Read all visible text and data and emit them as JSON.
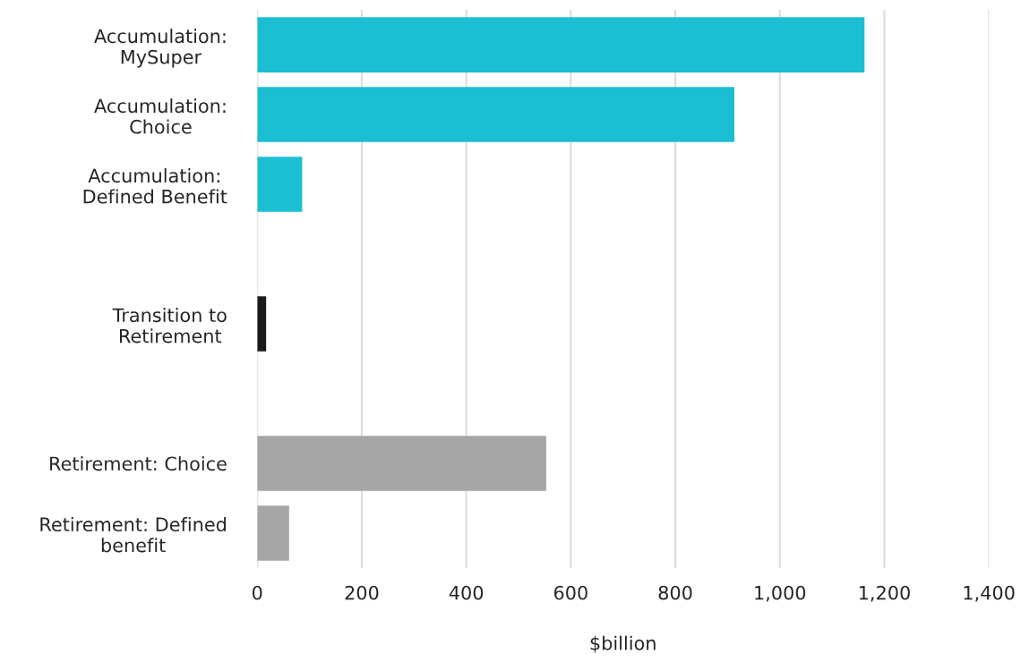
{
  "chart_data": {
    "type": "bar",
    "orientation": "horizontal",
    "xlabel": "$billion",
    "categories": [
      "Accumulation:\nMySuper",
      "Accumulation:\nChoice",
      "Accumulation:\nDefined Benefit",
      null,
      "Transition to\nRetirement",
      null,
      "Retirement: Choice",
      "Retirement: Defined\nbenefit"
    ],
    "values": [
      1162,
      913,
      86,
      null,
      17,
      null,
      553,
      61
    ],
    "colors": [
      "#1bbed2",
      "#1bbed2",
      "#1bbed2",
      null,
      "#1a1a1a",
      null,
      "#a6a6a6",
      "#a6a6a6"
    ],
    "xlim": [
      0,
      1400
    ],
    "xticks": [
      0,
      200,
      400,
      600,
      800,
      {
        "value": 1000,
        "label": "1,000"
      },
      {
        "value": 1200,
        "label": "1,200"
      },
      {
        "value": 1400,
        "label": "1,400"
      }
    ],
    "grid": "x",
    "legend": false
  }
}
